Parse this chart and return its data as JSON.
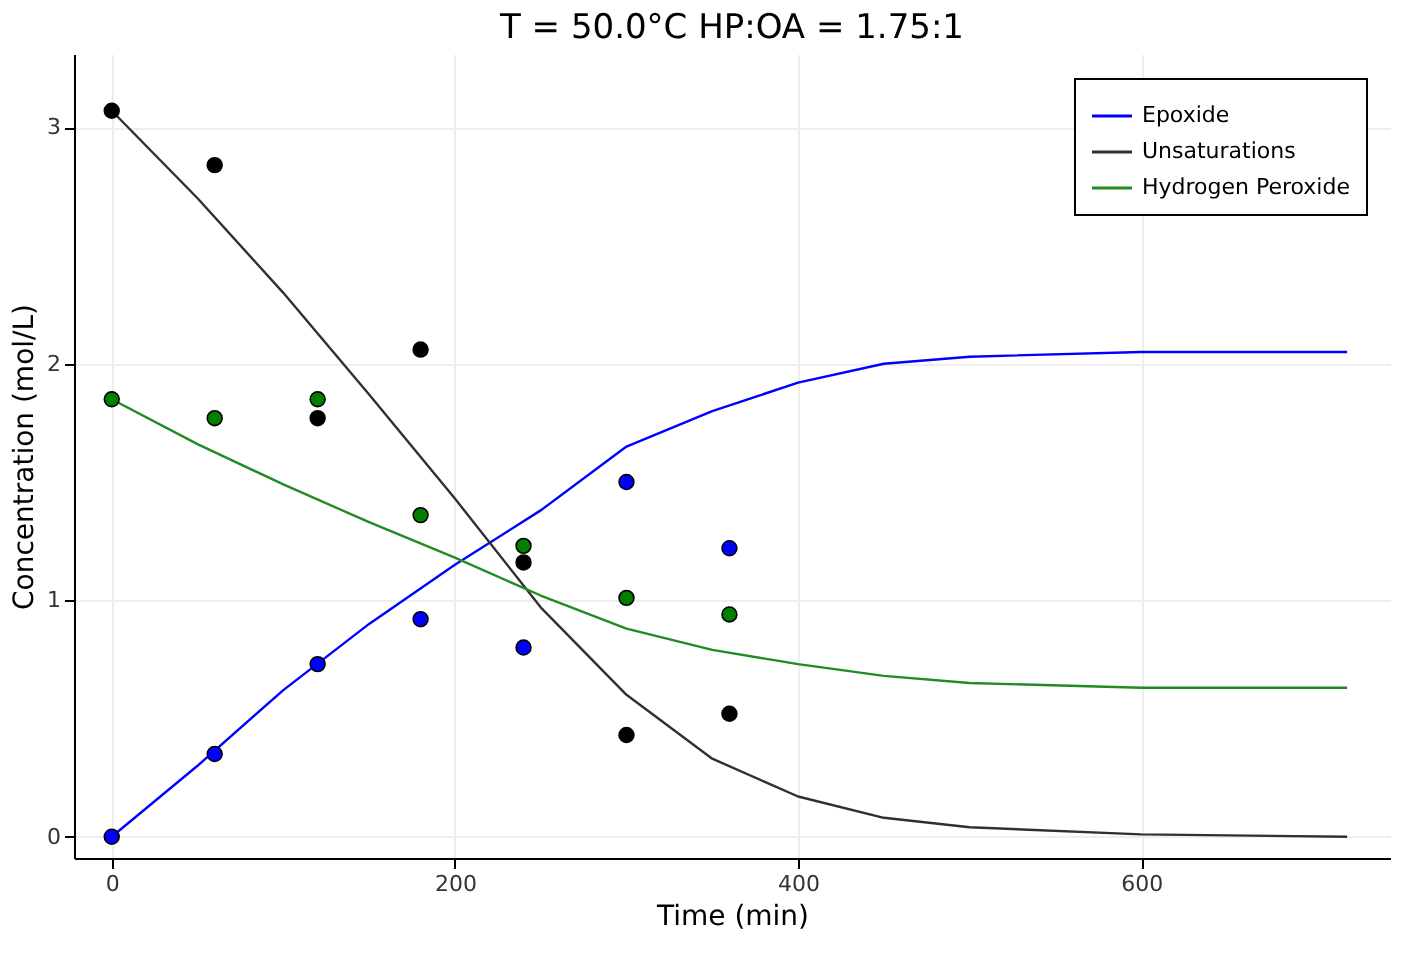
{
  "chart_data": {
    "type": "line",
    "title": "T = 50.0°C   HP:OA = 1.75:1",
    "xlabel": "Time (min)",
    "ylabel": "Concentration (mol/L)",
    "xlim": [
      -22,
      745
    ],
    "ylim": [
      -0.09,
      3.31
    ],
    "xticks": [
      0,
      200,
      400,
      600
    ],
    "yticks": [
      0,
      1,
      2,
      3
    ],
    "grid": true,
    "legend": "top right",
    "series": [
      {
        "name": "Epoxide",
        "color": "#0000ff",
        "marker": "none",
        "x": [
          0,
          50,
          100,
          150,
          200,
          250,
          300,
          350,
          400,
          450,
          500,
          600,
          720
        ],
        "values": [
          0,
          0.3,
          0.62,
          0.9,
          1.15,
          1.38,
          1.65,
          1.8,
          1.92,
          2.0,
          2.03,
          2.05,
          2.05
        ]
      },
      {
        "name": "Unsaturations",
        "color": "#303030",
        "marker": "none",
        "x": [
          0,
          50,
          100,
          150,
          200,
          250,
          300,
          350,
          400,
          450,
          500,
          600,
          720
        ],
        "values": [
          3.07,
          2.7,
          2.3,
          1.87,
          1.43,
          0.97,
          0.6,
          0.33,
          0.17,
          0.08,
          0.04,
          0.01,
          0.0
        ]
      },
      {
        "name": "Hydrogen Peroxide",
        "color": "#228b22",
        "marker": "none",
        "x": [
          0,
          50,
          100,
          150,
          200,
          250,
          300,
          350,
          400,
          450,
          500,
          600,
          720
        ],
        "values": [
          1.85,
          1.66,
          1.49,
          1.33,
          1.18,
          1.02,
          0.88,
          0.79,
          0.73,
          0.68,
          0.65,
          0.63,
          0.63
        ]
      },
      {
        "type": "scatter",
        "color": "#0000ff",
        "marker": "circle",
        "x": [
          0,
          60,
          120,
          180,
          240,
          300,
          360
        ],
        "values": [
          0,
          0.35,
          0.73,
          0.92,
          0.8,
          1.5,
          1.22
        ]
      },
      {
        "type": "scatter",
        "color": "#000000",
        "marker": "circle",
        "x": [
          0,
          60,
          120,
          180,
          240,
          300,
          360
        ],
        "values": [
          3.07,
          2.84,
          1.77,
          2.06,
          1.16,
          0.43,
          0.52
        ]
      },
      {
        "type": "scatter",
        "color": "#007f00",
        "marker": "circle",
        "x": [
          0,
          60,
          120,
          180,
          240,
          300,
          360
        ],
        "values": [
          1.85,
          1.77,
          1.85,
          1.36,
          1.23,
          1.01,
          0.94
        ]
      }
    ]
  }
}
